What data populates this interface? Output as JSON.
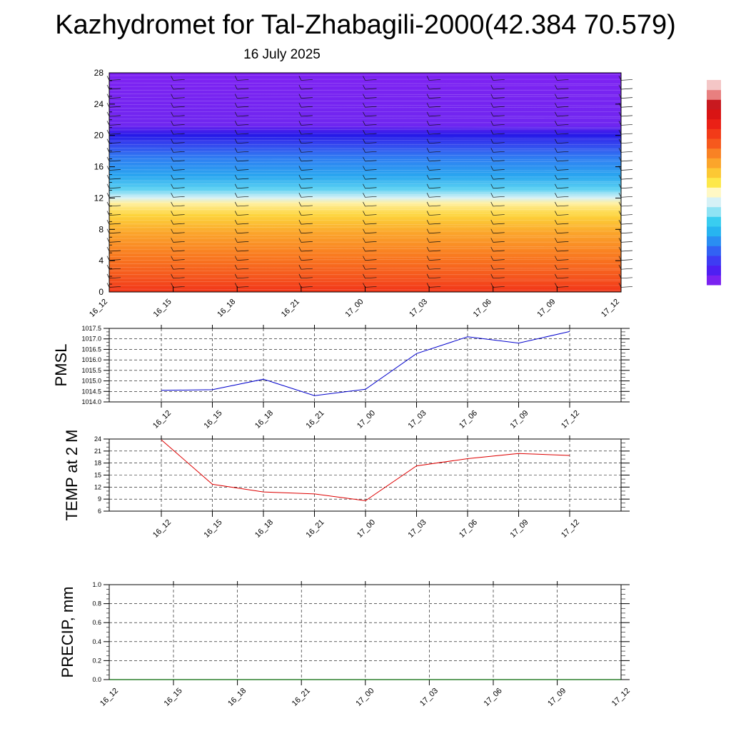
{
  "page": {
    "title": "Kazhydromet for Tal-Zhabagili-2000(42.384 70.579)",
    "subtitle": "16 July 2025"
  },
  "colorbar": {
    "colors": [
      "#7a22f0",
      "#4e1ff2",
      "#3e3cf3",
      "#3262f3",
      "#2a8ef2",
      "#27b4f0",
      "#39cdf0",
      "#8fe3f4",
      "#d6f1f6",
      "#fff8c4",
      "#fde84a",
      "#fcc834",
      "#fba52b",
      "#f98224",
      "#f6591d",
      "#f23b18",
      "#ea2016",
      "#d91414",
      "#c8191f",
      "#e87f7f",
      "#f4c6c6"
    ]
  },
  "chart_data": [
    {
      "type": "heatmap",
      "name": "vertical-section",
      "x_labels": [
        "16_12",
        "16_15",
        "16_18",
        "16_21",
        "17_00",
        "17_03",
        "17_06",
        "17_09",
        "17_12"
      ],
      "y_ticks": [
        0,
        4,
        8,
        12,
        16,
        20,
        24,
        28
      ],
      "ylim": [
        0,
        28
      ],
      "features": [
        "color-filled contours",
        "wind barbs"
      ]
    },
    {
      "type": "line",
      "name": "pmsl",
      "ylabel": "PMSL",
      "categories": [
        "16_12",
        "16_15",
        "16_18",
        "16_21",
        "17_00",
        "17_03",
        "17_06",
        "17_09",
        "17_12"
      ],
      "values": [
        1014.55,
        1014.58,
        1015.08,
        1014.3,
        1014.6,
        1016.3,
        1017.1,
        1016.8,
        1017.35
      ],
      "ylim": [
        1014.0,
        1017.5
      ],
      "y_ticks": [
        "1014.0",
        "1014.5",
        "1015.0",
        "1015.5",
        "1016.0",
        "1016.5",
        "1017.0",
        "1017.5"
      ],
      "color": "#0000cc",
      "grid": true
    },
    {
      "type": "line",
      "name": "temp",
      "ylabel": "TEMP at 2 M",
      "categories": [
        "16_12",
        "16_15",
        "16_18",
        "16_21",
        "17_00",
        "17_03",
        "17_06",
        "17_09",
        "17_12"
      ],
      "values": [
        23.8,
        12.7,
        10.8,
        10.3,
        8.6,
        17.3,
        19.1,
        20.4,
        19.9
      ],
      "ylim": [
        6,
        24
      ],
      "y_ticks": [
        "6",
        "9",
        "12",
        "15",
        "18",
        "21",
        "24"
      ],
      "color": "#dd0000",
      "grid": true
    },
    {
      "type": "line",
      "name": "precip",
      "ylabel": "PRECIP, mm",
      "categories": [
        "16_12",
        "16_15",
        "16_18",
        "16_21",
        "17_00",
        "17_03",
        "17_06",
        "17_09",
        "17_12"
      ],
      "values": [
        0,
        0,
        0,
        0,
        0,
        0,
        0,
        0,
        0
      ],
      "ylim": [
        0,
        1
      ],
      "y_ticks": [
        "0.0",
        "0.2",
        "0.4",
        "0.6",
        "0.8",
        "1.0"
      ],
      "color": "#006600",
      "grid": true
    }
  ]
}
